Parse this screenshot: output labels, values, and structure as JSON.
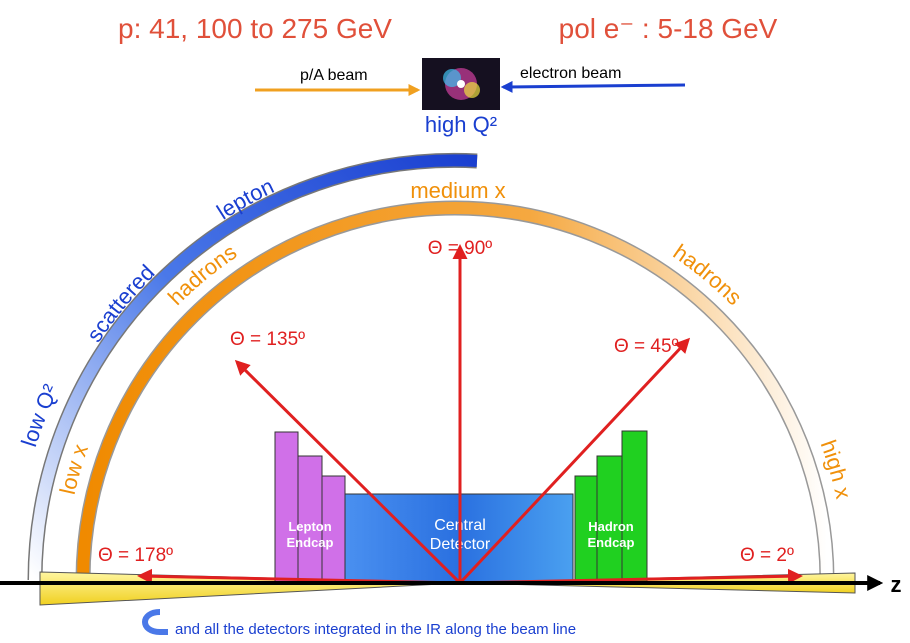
{
  "header": {
    "proton": "p: 41, 100 to 275 GeV",
    "electron": "pol e⁻ : 5-18 GeV"
  },
  "beams": {
    "proton": "p/A beam",
    "electron": "electron beam",
    "collision": "high Q²"
  },
  "arcs": {
    "scattered": "scattered",
    "lepton": "lepton",
    "low_q2": "low Q²",
    "medium_x": "medium x",
    "hadrons_left": "hadrons",
    "hadrons_right": "hadrons",
    "low_x": "low x",
    "high_x": "high x"
  },
  "angles": {
    "a90": "Θ = 90º",
    "a135": "Θ = 135º",
    "a45": "Θ = 45º",
    "a178": "Θ = 178º",
    "a2": "Θ = 2º"
  },
  "detectors": {
    "lepton_endcap": [
      "Lepton",
      "Endcap"
    ],
    "central": [
      "Central",
      "Detector"
    ],
    "hadron_endcap": [
      "Hadron",
      "Endcap"
    ]
  },
  "axis": "z",
  "footnote": "and all the detectors integrated in the IR along the beam line"
}
